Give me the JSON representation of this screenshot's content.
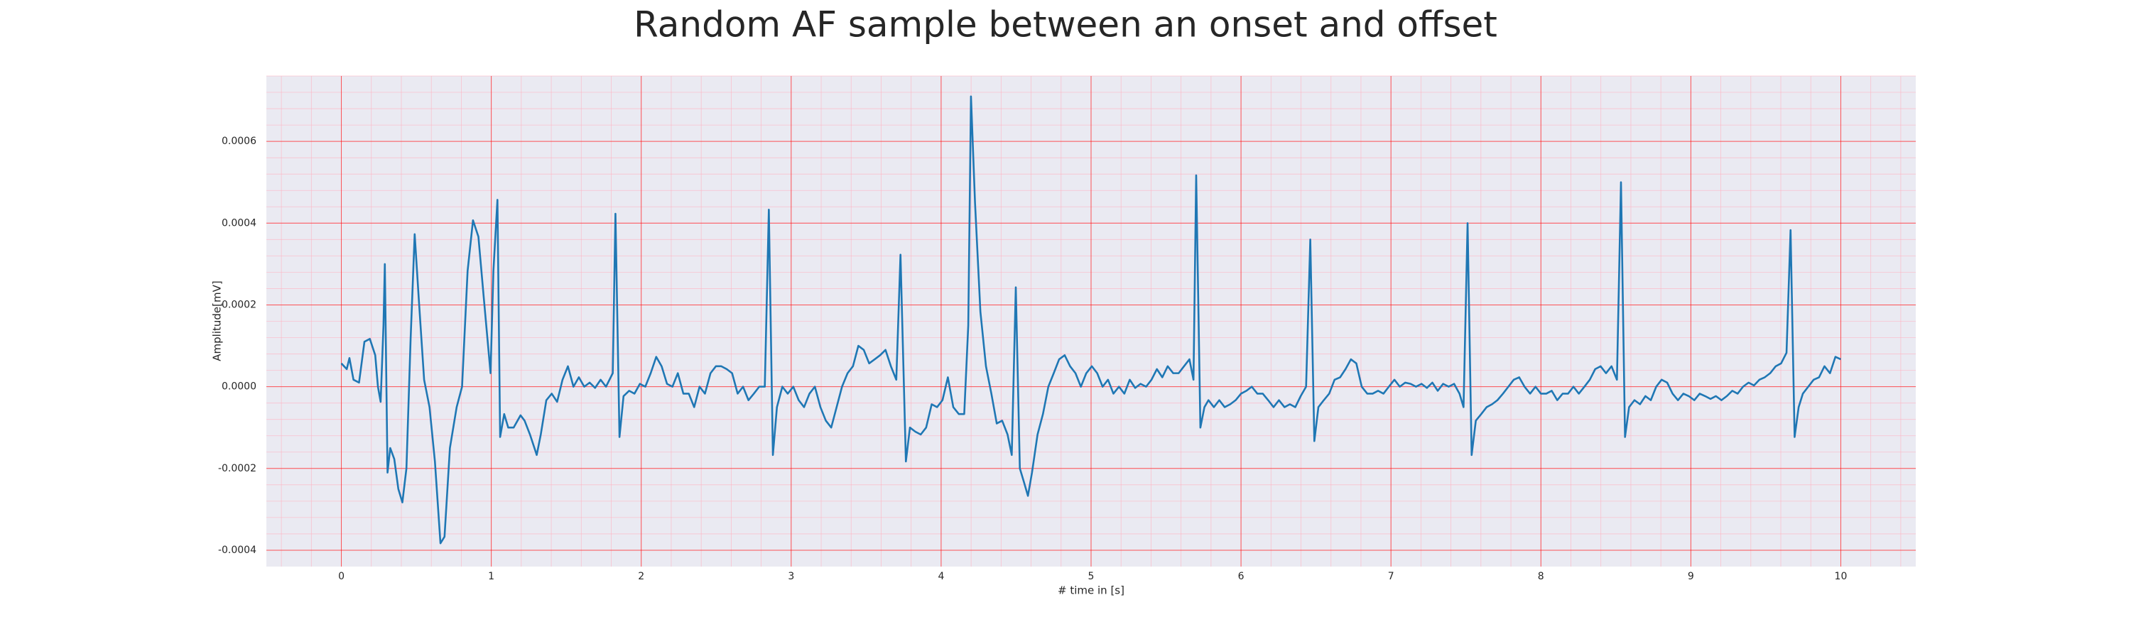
{
  "chart_data": {
    "type": "line",
    "title": "Random AF sample between an onset and offset",
    "xlabel": "# time in [s]",
    "ylabel": "Amplitude[mV]",
    "xlim": [
      -0.5,
      10.5
    ],
    "ylim": [
      -0.00044,
      0.00076
    ],
    "xticks": [
      0,
      1,
      2,
      3,
      4,
      5,
      6,
      7,
      8,
      9,
      10
    ],
    "yticks": [
      -0.0004,
      -0.0002,
      {
        "value": 0,
        "label": "0.0000"
      },
      0.0002,
      0.0004,
      0.0006
    ],
    "grid": true,
    "minor_grid": true,
    "grid_color": "#ff0000",
    "minor_grid_color": "#ffb0c0",
    "background": "#eaeaf2",
    "series": [
      {
        "color": "#1f77b4",
        "x": [
          0,
          0.036,
          0.054,
          0.081,
          0.118,
          0.154,
          0.19,
          0.226,
          0.244,
          0.262,
          0.281,
          0.29,
          0.308,
          0.326,
          0.353,
          0.38,
          0.407,
          0.434,
          0.462,
          0.489,
          0.516,
          0.552,
          0.588,
          0.624,
          0.661,
          0.688,
          0.724,
          0.769,
          0.805,
          0.842,
          0.878,
          0.914,
          0.95,
          0.995,
          1.014,
          1.041,
          1.059,
          1.086,
          1.113,
          1.149,
          1.195,
          1.222,
          1.258,
          1.303,
          1.33,
          1.367,
          1.403,
          1.439,
          1.475,
          1.511,
          1.548,
          1.584,
          1.62,
          1.656,
          1.692,
          1.729,
          1.765,
          1.81,
          1.828,
          1.855,
          1.882,
          1.919,
          1.955,
          1.991,
          2.027,
          2.063,
          2.1,
          2.136,
          2.172,
          2.208,
          2.244,
          2.281,
          2.317,
          2.353,
          2.389,
          2.425,
          2.462,
          2.498,
          2.534,
          2.57,
          2.606,
          2.643,
          2.679,
          2.715,
          2.751,
          2.787,
          2.824,
          2.851,
          2.878,
          2.905,
          2.941,
          2.977,
          3.014,
          3.05,
          3.086,
          3.122,
          3.158,
          3.195,
          3.231,
          3.267,
          3.303,
          3.339,
          3.376,
          3.412,
          3.448,
          3.484,
          3.52,
          3.557,
          3.593,
          3.629,
          3.665,
          3.701,
          3.729,
          3.765,
          3.792,
          3.828,
          3.864,
          3.9,
          3.937,
          3.973,
          4.009,
          4.045,
          4.081,
          4.118,
          4.154,
          4.181,
          4.199,
          4.226,
          4.262,
          4.299,
          4.335,
          4.371,
          4.407,
          4.443,
          4.471,
          4.498,
          4.525,
          4.552,
          4.579,
          4.606,
          4.643,
          4.679,
          4.715,
          4.751,
          4.787,
          4.824,
          4.86,
          4.896,
          4.932,
          4.968,
          5.005,
          5.041,
          5.077,
          5.113,
          5.149,
          5.186,
          5.222,
          5.258,
          5.294,
          5.33,
          5.367,
          5.403,
          5.439,
          5.475,
          5.511,
          5.548,
          5.584,
          5.62,
          5.656,
          5.683,
          5.701,
          5.729,
          5.756,
          5.783,
          5.819,
          5.855,
          5.891,
          5.928,
          5.964,
          6.0,
          6.036,
          6.072,
          6.109,
          6.145,
          6.181,
          6.217,
          6.253,
          6.29,
          6.326,
          6.362,
          6.398,
          6.434,
          6.462,
          6.489,
          6.516,
          6.552,
          6.588,
          6.624,
          6.661,
          6.697,
          6.733,
          6.769,
          6.805,
          6.842,
          6.878,
          6.914,
          6.95,
          6.986,
          7.023,
          7.059,
          7.095,
          7.131,
          7.167,
          7.204,
          7.24,
          7.276,
          7.312,
          7.348,
          7.385,
          7.421,
          7.457,
          7.484,
          7.511,
          7.538,
          7.566,
          7.602,
          7.638,
          7.674,
          7.71,
          7.747,
          7.783,
          7.819,
          7.855,
          7.891,
          7.928,
          7.964,
          8.0,
          8.036,
          8.072,
          8.109,
          8.145,
          8.181,
          8.217,
          8.253,
          8.29,
          8.326,
          8.362,
          8.398,
          8.434,
          8.471,
          8.507,
          8.534,
          8.561,
          8.588,
          8.624,
          8.661,
          8.697,
          8.733,
          8.769,
          8.805,
          8.842,
          8.878,
          8.914,
          8.95,
          8.986,
          9.023,
          9.059,
          9.095,
          9.131,
          9.167,
          9.204,
          9.24,
          9.276,
          9.312,
          9.348,
          9.385,
          9.421,
          9.457,
          9.493,
          9.529,
          9.566,
          9.602,
          9.638,
          9.665,
          9.692,
          9.719,
          9.747,
          9.783,
          9.819,
          9.855,
          9.891,
          9.928,
          9.964,
          10.0
        ],
        "values": [
          5.7e-05,
          4.3e-05,
          7e-05,
          1.7e-05,
          1e-05,
          0.00011,
          0.000117,
          7.7e-05,
          0,
          -3.7e-05,
          0.00015,
          0.0003,
          -0.00021,
          -0.00015,
          -0.000177,
          -0.00025,
          -0.000283,
          -0.0002,
          0.000117,
          0.000373,
          0.000217,
          1.7e-05,
          -5e-05,
          -0.000183,
          -0.000383,
          -0.000367,
          -0.00015,
          -5e-05,
          0,
          0.000283,
          0.000407,
          0.000367,
          0.000217,
          3.3e-05,
          0.000283,
          0.000457,
          -0.000123,
          -6.7e-05,
          -0.0001,
          -0.0001,
          -7e-05,
          -8.3e-05,
          -0.000117,
          -0.000167,
          -0.000117,
          -3.3e-05,
          -1.7e-05,
          -3.7e-05,
          1.7e-05,
          5e-05,
          0,
          2.3e-05,
          0,
          1e-05,
          -3e-06,
          1.7e-05,
          0,
          3.3e-05,
          0.000423,
          -0.000123,
          -2.3e-05,
          -1e-05,
          -1.7e-05,
          7e-06,
          0,
          3.3e-05,
          7.3e-05,
          5e-05,
          7e-06,
          0,
          3.3e-05,
          -1.7e-05,
          -1.7e-05,
          -5e-05,
          0,
          -1.7e-05,
          3.3e-05,
          5e-05,
          5e-05,
          4.3e-05,
          3.3e-05,
          -1.7e-05,
          0,
          -3.3e-05,
          -1.7e-05,
          0,
          0,
          0.000433,
          -0.000167,
          -5e-05,
          0,
          -1.7e-05,
          0,
          -3.3e-05,
          -5e-05,
          -1.7e-05,
          0,
          -5e-05,
          -8.3e-05,
          -0.0001,
          -5e-05,
          0,
          3.3e-05,
          5e-05,
          0.0001,
          9e-05,
          5.7e-05,
          6.7e-05,
          7.7e-05,
          9e-05,
          5e-05,
          1.7e-05,
          0.000323,
          -0.000183,
          -0.0001,
          -0.00011,
          -0.000117,
          -0.0001,
          -4.3e-05,
          -5e-05,
          -3.3e-05,
          2.3e-05,
          -5e-05,
          -6.7e-05,
          -6.7e-05,
          0.00015,
          0.00071,
          0.00045,
          0.000183,
          5e-05,
          -1.7e-05,
          -9e-05,
          -8.3e-05,
          -0.000117,
          -0.000167,
          0.000243,
          -0.0002,
          -0.000233,
          -0.000267,
          -0.00021,
          -0.000117,
          -6.7e-05,
          0,
          3.3e-05,
          6.7e-05,
          7.7e-05,
          5e-05,
          3.3e-05,
          0,
          3.3e-05,
          5e-05,
          3.3e-05,
          0,
          1.7e-05,
          -1.7e-05,
          0,
          -1.7e-05,
          1.7e-05,
          -3e-06,
          7e-06,
          0,
          1.7e-05,
          4.3e-05,
          2.3e-05,
          5e-05,
          3.3e-05,
          3.3e-05,
          5e-05,
          6.7e-05,
          1.7e-05,
          0.000517,
          -0.0001,
          -5e-05,
          -3.3e-05,
          -5e-05,
          -3.3e-05,
          -5e-05,
          -4.3e-05,
          -3.3e-05,
          -1.7e-05,
          -1e-05,
          0,
          -1.7e-05,
          -1.7e-05,
          -3.3e-05,
          -5e-05,
          -3.3e-05,
          -5e-05,
          -4.3e-05,
          -5e-05,
          -2.3e-05,
          0,
          0.00036,
          -0.000133,
          -5e-05,
          -3.3e-05,
          -1.7e-05,
          1.7e-05,
          2.3e-05,
          4.3e-05,
          6.7e-05,
          5.7e-05,
          0,
          -1.7e-05,
          -1.7e-05,
          -1e-05,
          -1.7e-05,
          0,
          1.7e-05,
          0,
          1e-05,
          7e-06,
          0,
          7e-06,
          -3e-06,
          1e-05,
          -1e-05,
          7e-06,
          0,
          7e-06,
          -1.7e-05,
          -5e-05,
          0.0004,
          -0.000167,
          -8.3e-05,
          -6.7e-05,
          -5e-05,
          -4.3e-05,
          -3.3e-05,
          -1.7e-05,
          0,
          1.7e-05,
          2.3e-05,
          0,
          -1.7e-05,
          0,
          -1.7e-05,
          -1.7e-05,
          -1e-05,
          -3.3e-05,
          -1.7e-05,
          -1.7e-05,
          0,
          -1.7e-05,
          0,
          1.7e-05,
          4.3e-05,
          5e-05,
          3.3e-05,
          5e-05,
          1.7e-05,
          0.0005,
          -0.000123,
          -5e-05,
          -3.3e-05,
          -4.3e-05,
          -2.3e-05,
          -3.3e-05,
          0,
          1.7e-05,
          1e-05,
          -1.7e-05,
          -3.3e-05,
          -1.7e-05,
          -2.3e-05,
          -3.3e-05,
          -1.7e-05,
          -2.3e-05,
          -3e-05,
          -2.3e-05,
          -3.3e-05,
          -2.3e-05,
          -1e-05,
          -1.7e-05,
          0,
          1e-05,
          3e-06,
          1.7e-05,
          2.3e-05,
          3.3e-05,
          5e-05,
          5.7e-05,
          8.3e-05,
          0.000383,
          -0.000123,
          -5e-05,
          -1.7e-05,
          0,
          1.7e-05,
          2.3e-05,
          5e-05,
          3.3e-05,
          7.3e-05,
          6.7e-05
        ]
      }
    ]
  }
}
